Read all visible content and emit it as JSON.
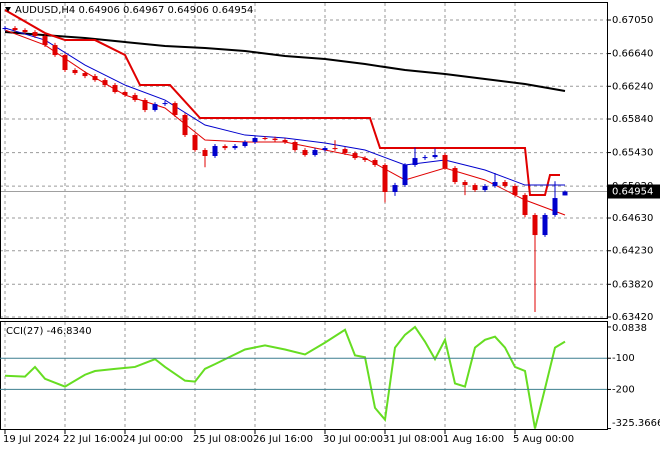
{
  "chart_data": {
    "type": "candlestick",
    "title": "AUDUSD,H4  0.64906 0.64967 0.64906 0.64954",
    "categories": [
      "19 Jul 2024",
      null,
      null,
      null,
      null,
      null,
      "22 Jul 16:00",
      null,
      null,
      null,
      null,
      null,
      "24 Jul 00:00",
      null,
      null,
      null,
      null,
      null,
      null,
      "25 Jul 08:00",
      null,
      null,
      null,
      null,
      null,
      "26 Jul 16:00",
      null,
      null,
      null,
      null,
      null,
      null,
      "30 Jul 00:00",
      null,
      null,
      null,
      null,
      null,
      "31 Jul 08:00",
      null,
      null,
      null,
      null,
      null,
      "1 Aug 16:00",
      null,
      null,
      null,
      null,
      null,
      null,
      "5 Aug 00:00",
      null,
      null,
      null,
      null,
      null
    ],
    "open": [
      0.6694,
      0.66952,
      0.66928,
      0.66903,
      0.66854,
      0.66744,
      0.66622,
      0.66439,
      0.66402,
      0.66365,
      0.66316,
      0.66255,
      0.6617,
      0.66133,
      0.66072,
      0.6595,
      0.66023,
      0.66035,
      0.65889,
      0.65644,
      0.65461,
      0.65388,
      0.6551,
      0.65485,
      0.6551,
      0.65559,
      0.65608,
      0.656,
      0.65583,
      0.65559,
      0.65461,
      0.654,
      0.65461,
      0.65485,
      0.65473,
      0.65424,
      0.65363,
      0.65339,
      0.65278,
      0.64948,
      0.65033,
      0.65278,
      0.65363,
      0.65375,
      0.654,
      0.65241,
      0.6507,
      0.65033,
      0.64972,
      0.65021,
      0.6507,
      0.65021,
      0.64911,
      0.64667,
      0.64422,
      0.64667,
      0.64906
    ],
    "high": [
      0.66975,
      0.66975,
      0.6695,
      0.66925,
      0.66875,
      0.6677,
      0.6664,
      0.6646,
      0.66425,
      0.6639,
      0.6634,
      0.6628,
      0.6619,
      0.6616,
      0.66095,
      0.66045,
      0.6606,
      0.66055,
      0.6591,
      0.65665,
      0.65485,
      0.65535,
      0.6553,
      0.65535,
      0.6558,
      0.6563,
      0.6563,
      0.65625,
      0.65605,
      0.6558,
      0.65485,
      0.65485,
      0.6551,
      0.6558,
      0.65495,
      0.65445,
      0.65385,
      0.6536,
      0.653,
      0.6506,
      0.653,
      0.6549,
      0.654,
      0.6548,
      0.65425,
      0.65265,
      0.65095,
      0.65055,
      0.65045,
      0.6518,
      0.65095,
      0.65045,
      0.64935,
      0.6469,
      0.6469,
      0.6508,
      0.64967
    ],
    "low": [
      0.6692,
      0.66905,
      0.6688,
      0.6683,
      0.6672,
      0.666,
      0.66415,
      0.6638,
      0.6634,
      0.66295,
      0.6623,
      0.6615,
      0.6611,
      0.6605,
      0.65925,
      0.6593,
      0.66,
      0.65865,
      0.6562,
      0.6544,
      0.6525,
      0.65365,
      0.6546,
      0.65465,
      0.6549,
      0.65535,
      0.6558,
      0.6556,
      0.65535,
      0.6544,
      0.6538,
      0.6538,
      0.6544,
      0.6545,
      0.654,
      0.6534,
      0.65315,
      0.65255,
      0.6482,
      0.649,
      0.6501,
      0.65255,
      0.6534,
      0.65355,
      0.6522,
      0.65045,
      0.6491,
      0.6495,
      0.6495,
      0.65,
      0.65,
      0.6489,
      0.6464,
      0.63481,
      0.644,
      0.64645,
      0.64906
    ],
    "close": [
      0.66952,
      0.66928,
      0.66903,
      0.66854,
      0.66744,
      0.66622,
      0.66439,
      0.66402,
      0.66365,
      0.66316,
      0.66255,
      0.6617,
      0.66133,
      0.66072,
      0.6595,
      0.66023,
      0.66035,
      0.65889,
      0.65644,
      0.65461,
      0.65388,
      0.6551,
      0.65485,
      0.6551,
      0.65559,
      0.65608,
      0.656,
      0.65583,
      0.65559,
      0.65461,
      0.654,
      0.65461,
      0.65485,
      0.65473,
      0.65424,
      0.65363,
      0.65339,
      0.65278,
      0.64948,
      0.65033,
      0.65278,
      0.65363,
      0.65375,
      0.654,
      0.65241,
      0.6507,
      0.65033,
      0.64972,
      0.65021,
      0.6507,
      0.65021,
      0.64911,
      0.64667,
      0.64422,
      0.64667,
      0.64874,
      0.64954
    ],
    "up_color": "#0000cd",
    "down_color": "#e00000",
    "ylim": [
      0.63408,
      0.67258
    ],
    "yticks": [
      {
        "value": 0.6705,
        "label": "0.67050"
      },
      {
        "value": 0.6664,
        "label": "0.66640"
      },
      {
        "value": 0.6624,
        "label": "0.66240"
      },
      {
        "value": 0.6584,
        "label": "0.65840"
      },
      {
        "value": 0.6543,
        "label": "0.65430"
      },
      {
        "value": 0.6502,
        "label": "0.65020"
      },
      {
        "value": 0.6463,
        "label": "0.64630"
      },
      {
        "value": 0.6423,
        "label": "0.64230"
      },
      {
        "value": 0.6382,
        "label": "0.63820"
      },
      {
        "value": 0.6342,
        "label": "0.63420"
      }
    ],
    "grid": true,
    "lines": [
      {
        "color": "#000000",
        "width": 2,
        "x": [
          0,
          4,
          8,
          12,
          16,
          20,
          24,
          28,
          32,
          36,
          40,
          44,
          48,
          52,
          56
        ],
        "values": [
          0.66903,
          0.66866,
          0.6683,
          0.66781,
          0.66732,
          0.66708,
          0.66671,
          0.6661,
          0.66573,
          0.66512,
          0.66439,
          0.6639,
          0.66329,
          0.66268,
          0.66182
        ]
      },
      {
        "color": "#e00000",
        "width": 2,
        "x": [
          0,
          4,
          6,
          9,
          12,
          13.5,
          16.5,
          19.5,
          36.5,
          37.5,
          52,
          52.5,
          54,
          54.5,
          55.5
        ],
        "values": [
          0.67172,
          0.66891,
          0.66805,
          0.66805,
          0.66622,
          0.66255,
          0.66255,
          0.65852,
          0.65852,
          0.65486,
          0.65486,
          0.64911,
          0.64911,
          0.65156,
          0.65156
        ]
      },
      {
        "color": "#0000cd",
        "width": 1,
        "x": [
          0,
          4,
          8,
          12,
          16,
          20,
          24,
          28,
          32,
          36,
          40,
          44,
          48,
          52,
          56
        ],
        "values": [
          0.66952,
          0.66805,
          0.665,
          0.66255,
          0.66072,
          0.65767,
          0.65644,
          0.65608,
          0.65547,
          0.65461,
          0.65278,
          0.65339,
          0.65217,
          0.65033,
          0.65033
        ]
      },
      {
        "color": "#e00000",
        "width": 1,
        "x": [
          0,
          4,
          8,
          12,
          16,
          20,
          24,
          28,
          32,
          36,
          40,
          44,
          48,
          52,
          56
        ],
        "values": [
          0.66928,
          0.66744,
          0.66415,
          0.66133,
          0.65975,
          0.65583,
          0.65559,
          0.65559,
          0.65461,
          0.65363,
          0.65095,
          0.65241,
          0.65095,
          0.6485,
          0.64667
        ]
      }
    ],
    "cci": {
      "title": "CCI(27) -46.8340",
      "color": "#66dd22",
      "level_color": "#3d7f8f",
      "levels": [
        -100,
        -200
      ],
      "x": [
        0,
        2,
        3,
        4,
        6,
        8,
        9,
        11,
        13,
        15,
        16,
        18,
        19,
        20,
        21,
        24,
        26,
        28,
        30,
        32,
        34,
        35,
        36,
        37,
        38,
        39,
        40,
        41,
        42,
        43,
        44,
        45,
        46,
        47,
        48,
        49,
        50,
        51,
        52,
        53,
        54,
        55,
        56
      ],
      "values": [
        -156,
        -159,
        -128,
        -166,
        -191,
        -153,
        -141,
        -134,
        -128,
        -103,
        -128,
        -172,
        -175,
        -134,
        -119,
        -72,
        -59,
        -72,
        -88,
        -50,
        -9,
        -91,
        -97,
        -259,
        -297,
        -66,
        -25,
        0.0838,
        -47,
        -103,
        -41,
        -181,
        -191,
        -66,
        -41,
        -31,
        -66,
        -128,
        -141,
        -325.3666,
        -197,
        -66,
        -46.834
      ],
      "y2lim": [
        -330,
        16
      ],
      "y2ticks": [
        {
          "value": 0.0838,
          "label": "0.0838"
        },
        -100,
        -200,
        {
          "value": -325.3666,
          "label": "-325.3666"
        }
      ]
    }
  }
}
